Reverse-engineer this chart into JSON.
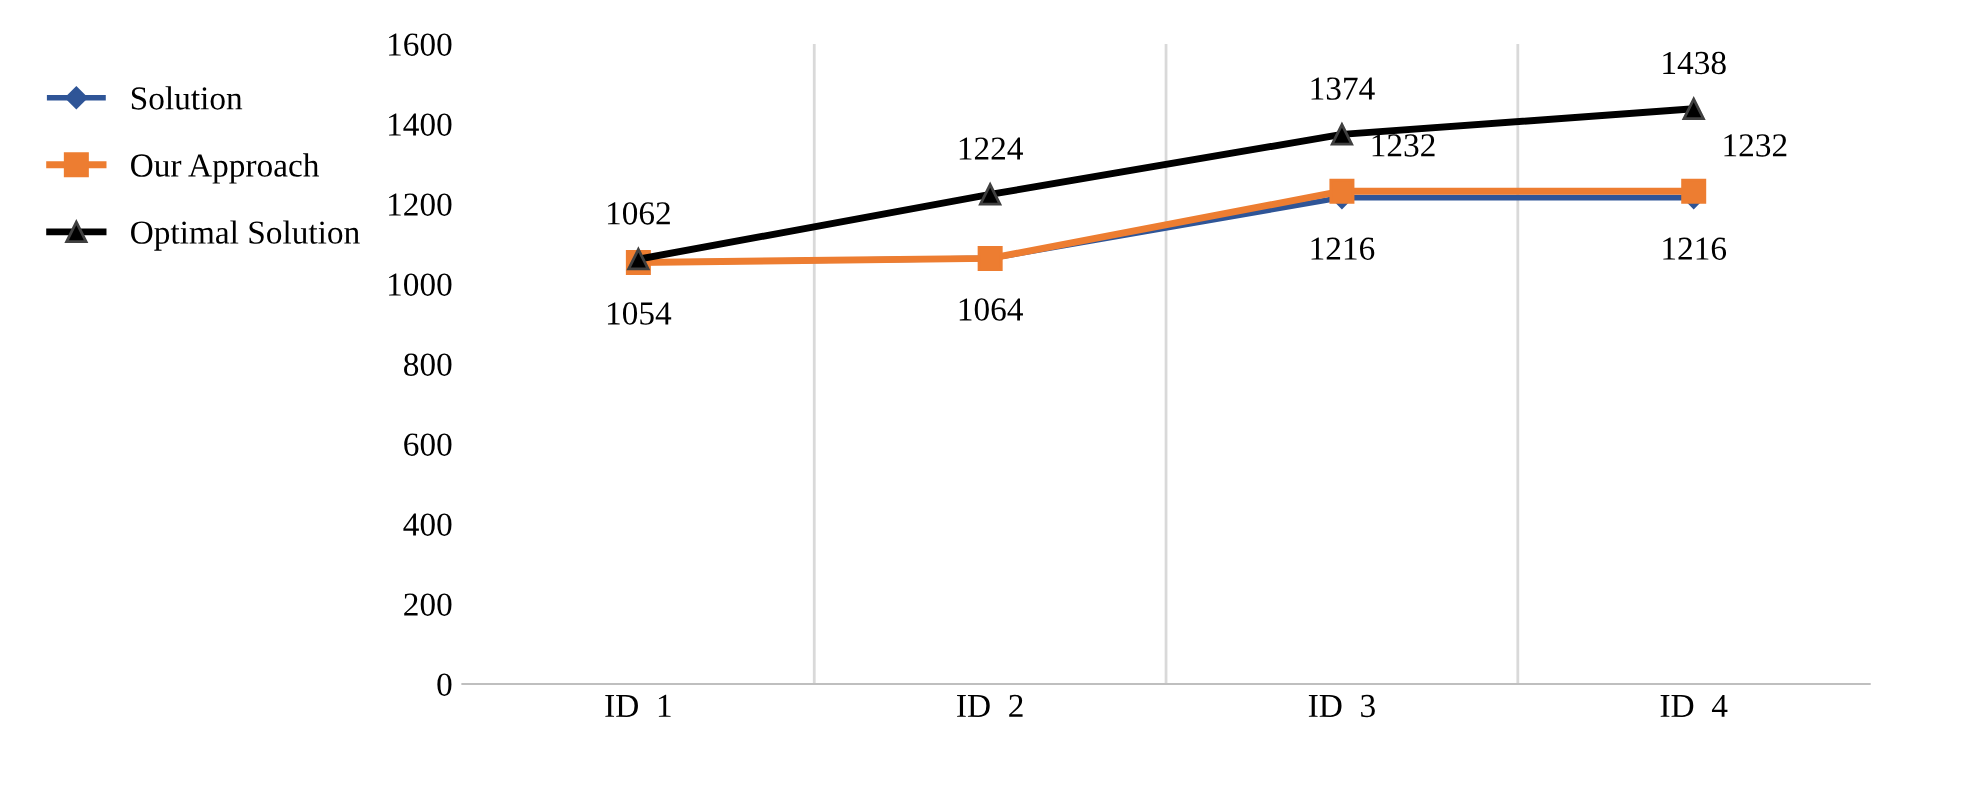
{
  "chart_data": {
    "type": "line",
    "categories": [
      "ID  1",
      "ID  2",
      "ID  3",
      "ID  4"
    ],
    "series": [
      {
        "name": "Solution",
        "color": "#2f5597",
        "marker": "diamond",
        "values": [
          1054,
          1064,
          1216,
          1216
        ],
        "value_labels": [
          "1054",
          "1064",
          "1216",
          "1216"
        ]
      },
      {
        "name": "Our Approach",
        "color": "#ed7d31",
        "marker": "square",
        "values": [
          1054,
          1064,
          1232,
          1232
        ],
        "value_labels": [
          null,
          null,
          "1232",
          "1232"
        ]
      },
      {
        "name": "Optimal Solution",
        "color": "#000000",
        "marker": "triangle",
        "values": [
          1062,
          1224,
          1374,
          1438
        ],
        "value_labels": [
          "1062",
          "1224",
          "1374",
          "1438"
        ]
      }
    ],
    "ylim": [
      0,
      1600
    ],
    "yticks": [
      0,
      200,
      400,
      600,
      800,
      1000,
      1200,
      1400,
      1600
    ],
    "grid": "x",
    "legend": "left",
    "line_style": "solid"
  }
}
